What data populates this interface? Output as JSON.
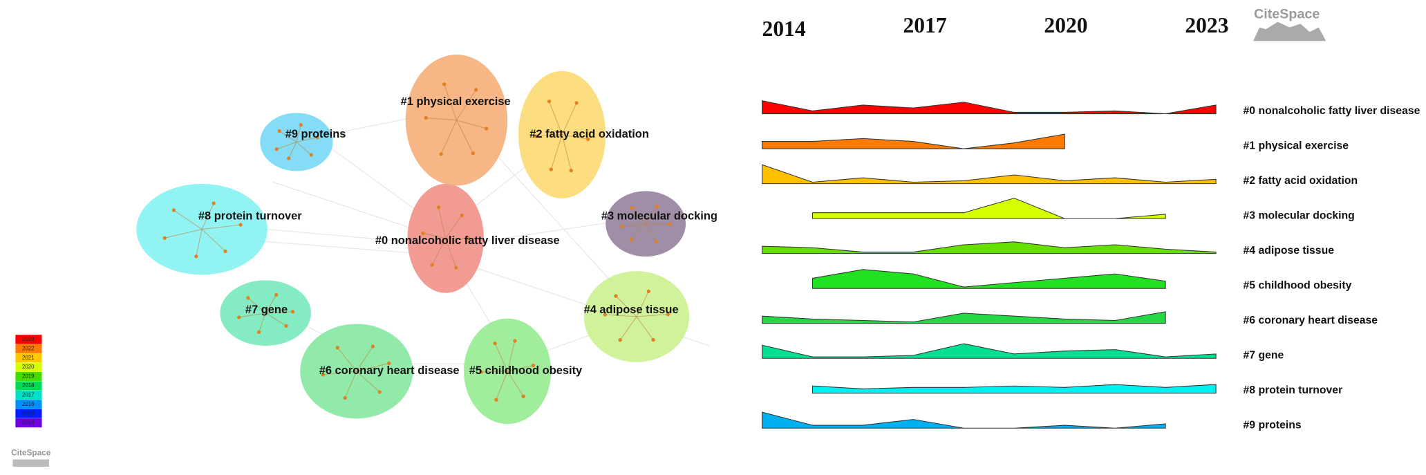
{
  "network": {
    "clusters": [
      {
        "label": "#0 nonalcoholic fatty liver disease",
        "color": "#f08a80"
      },
      {
        "label": "#1 physical exercise",
        "color": "#f5a970"
      },
      {
        "label": "#2 fatty acid oxidation",
        "color": "#fbd86a"
      },
      {
        "label": "#3 molecular docking",
        "color": "#8e7a96"
      },
      {
        "label": "#4 adipose tissue",
        "color": "#c8f088"
      },
      {
        "label": "#5 childhood obesity",
        "color": "#8fea8a"
      },
      {
        "label": "#6 coronary heart disease",
        "color": "#7ee69a"
      },
      {
        "label": "#7 gene",
        "color": "#6ee8b8"
      },
      {
        "label": "#8 protein turnover",
        "color": "#7ef2f0"
      },
      {
        "label": "#9 proteins",
        "color": "#6fd6f5"
      }
    ],
    "legend": [
      {
        "label": "2023",
        "color": "#ff0000"
      },
      {
        "label": "2022",
        "color": "#ff7a00"
      },
      {
        "label": "2021",
        "color": "#ffc800"
      },
      {
        "label": "2020",
        "color": "#d8ff00"
      },
      {
        "label": "2019",
        "color": "#44dd00"
      },
      {
        "label": "2018",
        "color": "#00dd55"
      },
      {
        "label": "2017",
        "color": "#00e0c8"
      },
      {
        "label": "2016",
        "color": "#0090ff"
      },
      {
        "label": "2015",
        "color": "#0020ff"
      },
      {
        "label": "2014",
        "color": "#7000e0"
      }
    ]
  },
  "logos": [
    "CiteSpace",
    "CiteSpace"
  ],
  "chart_data": {
    "type": "area",
    "x": [
      2014,
      2015,
      2016,
      2017,
      2018,
      2019,
      2020,
      2021,
      2022,
      2023
    ],
    "xlim": [
      2014,
      2023
    ],
    "xticks": [
      2014,
      2017,
      2020,
      2023
    ],
    "ylim": [
      0,
      16
    ],
    "series": [
      {
        "name": "#0 nonalcoholic fatty liver disease",
        "color": "#ff0000",
        "values": [
          9,
          2,
          6,
          4,
          8,
          1,
          1,
          2,
          0,
          6
        ]
      },
      {
        "name": "#1 physical exercise",
        "color": "#ff7a00",
        "values": [
          5,
          5,
          7,
          5,
          0,
          4,
          10,
          null,
          null,
          null
        ]
      },
      {
        "name": "#2 fatty acid oxidation",
        "color": "#ffc000",
        "values": [
          13,
          1,
          4,
          1,
          2,
          6,
          2,
          4,
          1,
          3
        ]
      },
      {
        "name": "#3 molecular docking",
        "color": "#d8ff00",
        "values": [
          null,
          4,
          4,
          4,
          4,
          14,
          0,
          0,
          3,
          null
        ]
      },
      {
        "name": "#4 adipose tissue",
        "color": "#66e000",
        "values": [
          5,
          4,
          1,
          1,
          6,
          8,
          4,
          6,
          3,
          1
        ]
      },
      {
        "name": "#5 childhood obesity",
        "color": "#22e022",
        "values": [
          null,
          7,
          13,
          10,
          1,
          4,
          7,
          10,
          5,
          null
        ]
      },
      {
        "name": "#6 coronary heart disease",
        "color": "#22d844",
        "values": [
          5,
          3,
          2,
          1,
          7,
          5,
          3,
          2,
          8,
          null
        ]
      },
      {
        "name": "#7 gene",
        "color": "#00e090",
        "values": [
          9,
          1,
          1,
          2,
          10,
          3,
          5,
          6,
          1,
          3
        ]
      },
      {
        "name": "#8 protein turnover",
        "color": "#00f0f0",
        "values": [
          null,
          5,
          3,
          4,
          4,
          5,
          4,
          6,
          4,
          6
        ]
      },
      {
        "name": "#9 proteins",
        "color": "#00b0f0",
        "values": [
          11,
          2,
          2,
          6,
          0,
          0,
          2,
          0,
          3,
          null
        ]
      }
    ]
  }
}
